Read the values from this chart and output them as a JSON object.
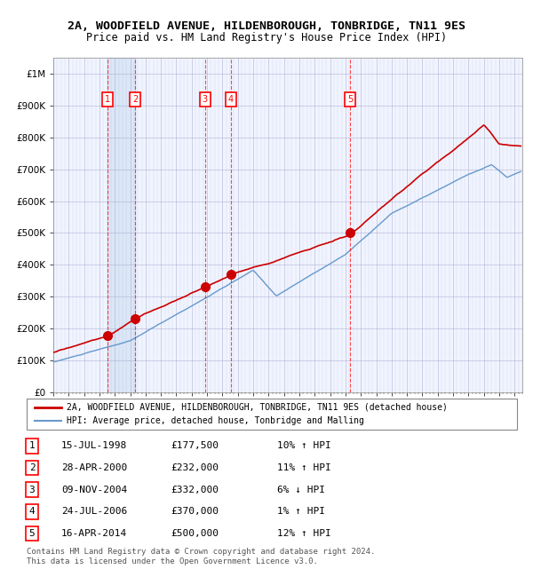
{
  "title": "2A, WOODFIELD AVENUE, HILDENBOROUGH, TONBRIDGE, TN11 9ES",
  "subtitle": "Price paid vs. HM Land Registry's House Price Index (HPI)",
  "hpi_color": "#6699cc",
  "property_color": "#cc0000",
  "background_color": "#ffffff",
  "plot_bg_color": "#f0f4ff",
  "grid_color": "#aaaacc",
  "ylim": [
    0,
    1050000
  ],
  "yticks": [
    0,
    100000,
    200000,
    300000,
    400000,
    500000,
    600000,
    700000,
    800000,
    900000,
    1000000
  ],
  "ytick_labels": [
    "£0",
    "£100K",
    "£200K",
    "£300K",
    "£400K",
    "£500K",
    "£600K",
    "£700K",
    "£800K",
    "£900K",
    "£1M"
  ],
  "transactions": [
    {
      "num": 1,
      "date": "15-JUL-1998",
      "year": 1998.54,
      "price": 177500,
      "pct": "10%",
      "dir": "↑"
    },
    {
      "num": 2,
      "date": "28-APR-2000",
      "year": 2000.32,
      "price": 232000,
      "pct": "11%",
      "dir": "↑"
    },
    {
      "num": 3,
      "date": "09-NOV-2004",
      "year": 2004.86,
      "price": 332000,
      "pct": "6%",
      "dir": "↓"
    },
    {
      "num": 4,
      "date": "24-JUL-2006",
      "year": 2006.56,
      "price": 370000,
      "pct": "1%",
      "dir": "↑"
    },
    {
      "num": 5,
      "date": "16-APR-2014",
      "year": 2014.29,
      "price": 500000,
      "pct": "12%",
      "dir": "↑"
    }
  ],
  "legend_property": "2A, WOODFIELD AVENUE, HILDENBOROUGH, TONBRIDGE, TN11 9ES (detached house)",
  "legend_hpi": "HPI: Average price, detached house, Tonbridge and Malling",
  "footer": "Contains HM Land Registry data © Crown copyright and database right 2024.\nThis data is licensed under the Open Government Licence v3.0.",
  "xmin": 1995.0,
  "xmax": 2025.5
}
